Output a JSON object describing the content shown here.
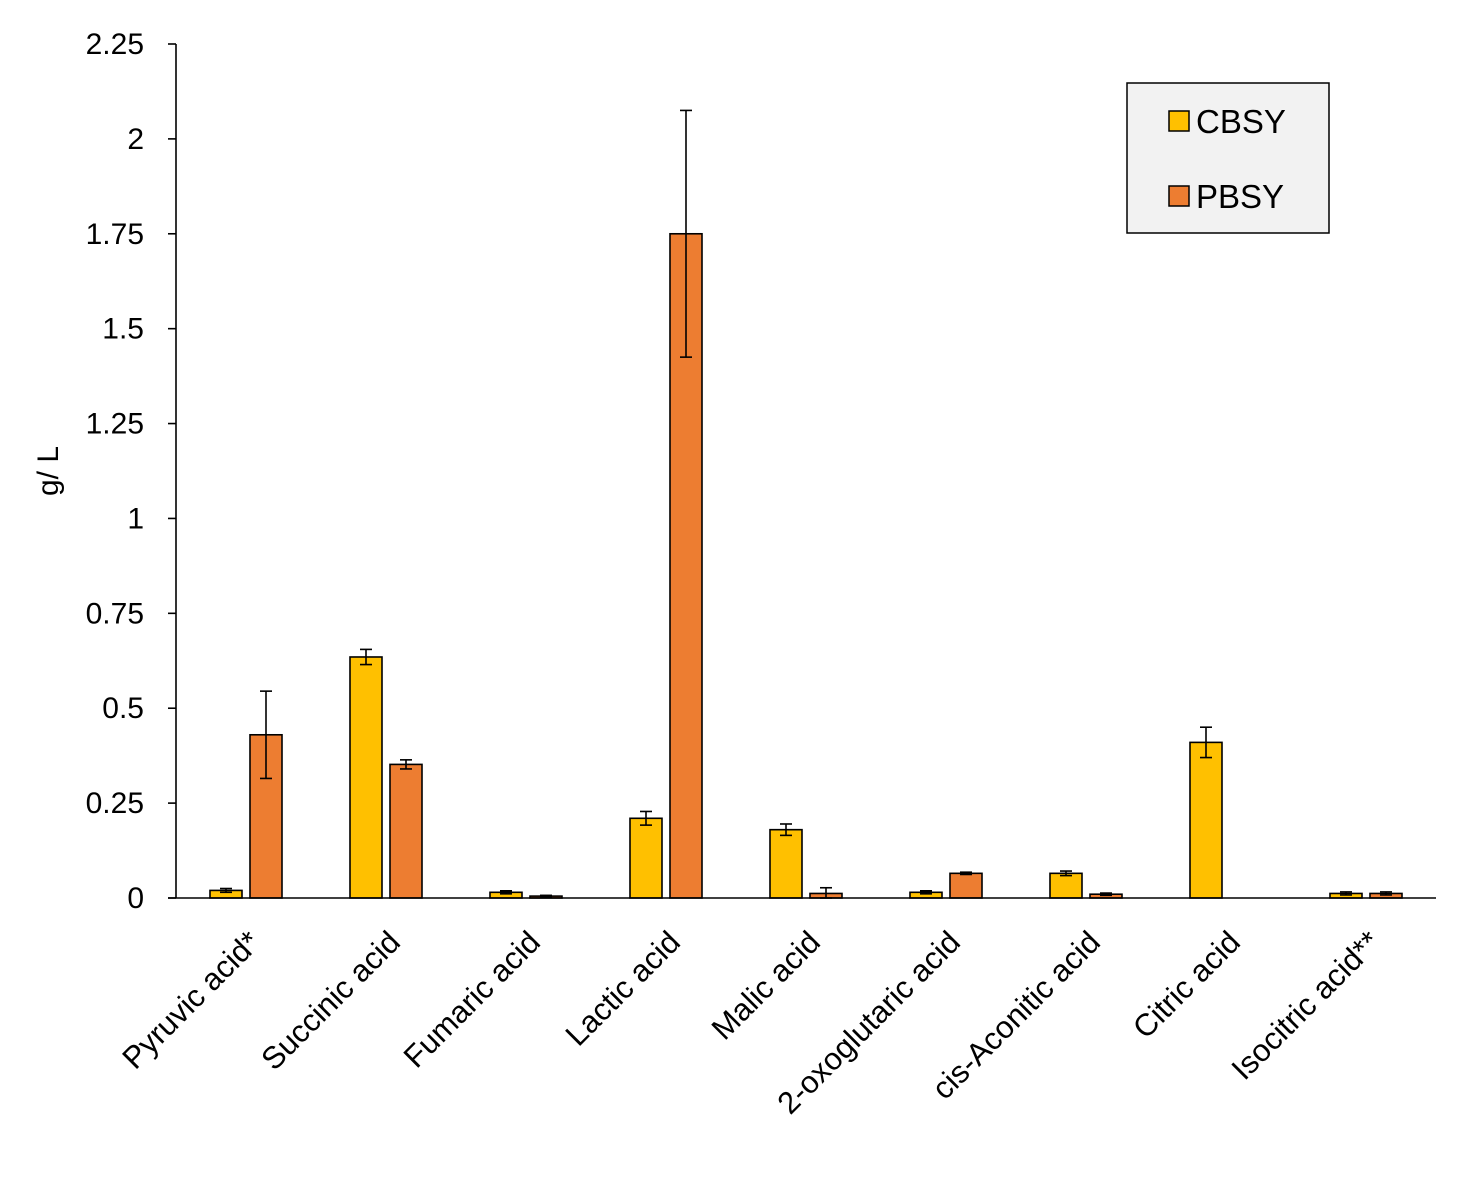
{
  "chart_data": {
    "type": "bar",
    "title": "",
    "xlabel": "",
    "ylabel": "g/ L",
    "ylim": [
      0,
      2.25
    ],
    "yticks": [
      "0",
      "0.25",
      "0.5",
      "0.75",
      "1",
      "1.25",
      "1.5",
      "1.75",
      "2",
      "2.25"
    ],
    "grid": false,
    "legend_position": "top-right",
    "categories": [
      "Pyruvic acid*",
      "Succinic acid",
      "Fumaric acid",
      "Lactic acid",
      "Malic acid",
      "2-oxoglutaric acid",
      "cis-Aconitic acid",
      "Citric acid",
      "Isocitric acid**"
    ],
    "series": [
      {
        "name": "CBSY",
        "color": "#FFC000",
        "values": [
          0.02,
          0.635,
          0.015,
          0.21,
          0.18,
          0.015,
          0.065,
          0.41,
          0.012
        ],
        "errors": [
          0.005,
          0.02,
          0.004,
          0.018,
          0.015,
          0.004,
          0.006,
          0.04,
          0.004
        ]
      },
      {
        "name": "PBSY",
        "color": "#ED7D31",
        "values": [
          0.43,
          0.352,
          0.005,
          1.75,
          0.012,
          0.065,
          0.01,
          0,
          0.012
        ],
        "errors": [
          0.115,
          0.012,
          0.002,
          0.325,
          0.015,
          0.003,
          0.003,
          0,
          0.004
        ]
      }
    ]
  }
}
